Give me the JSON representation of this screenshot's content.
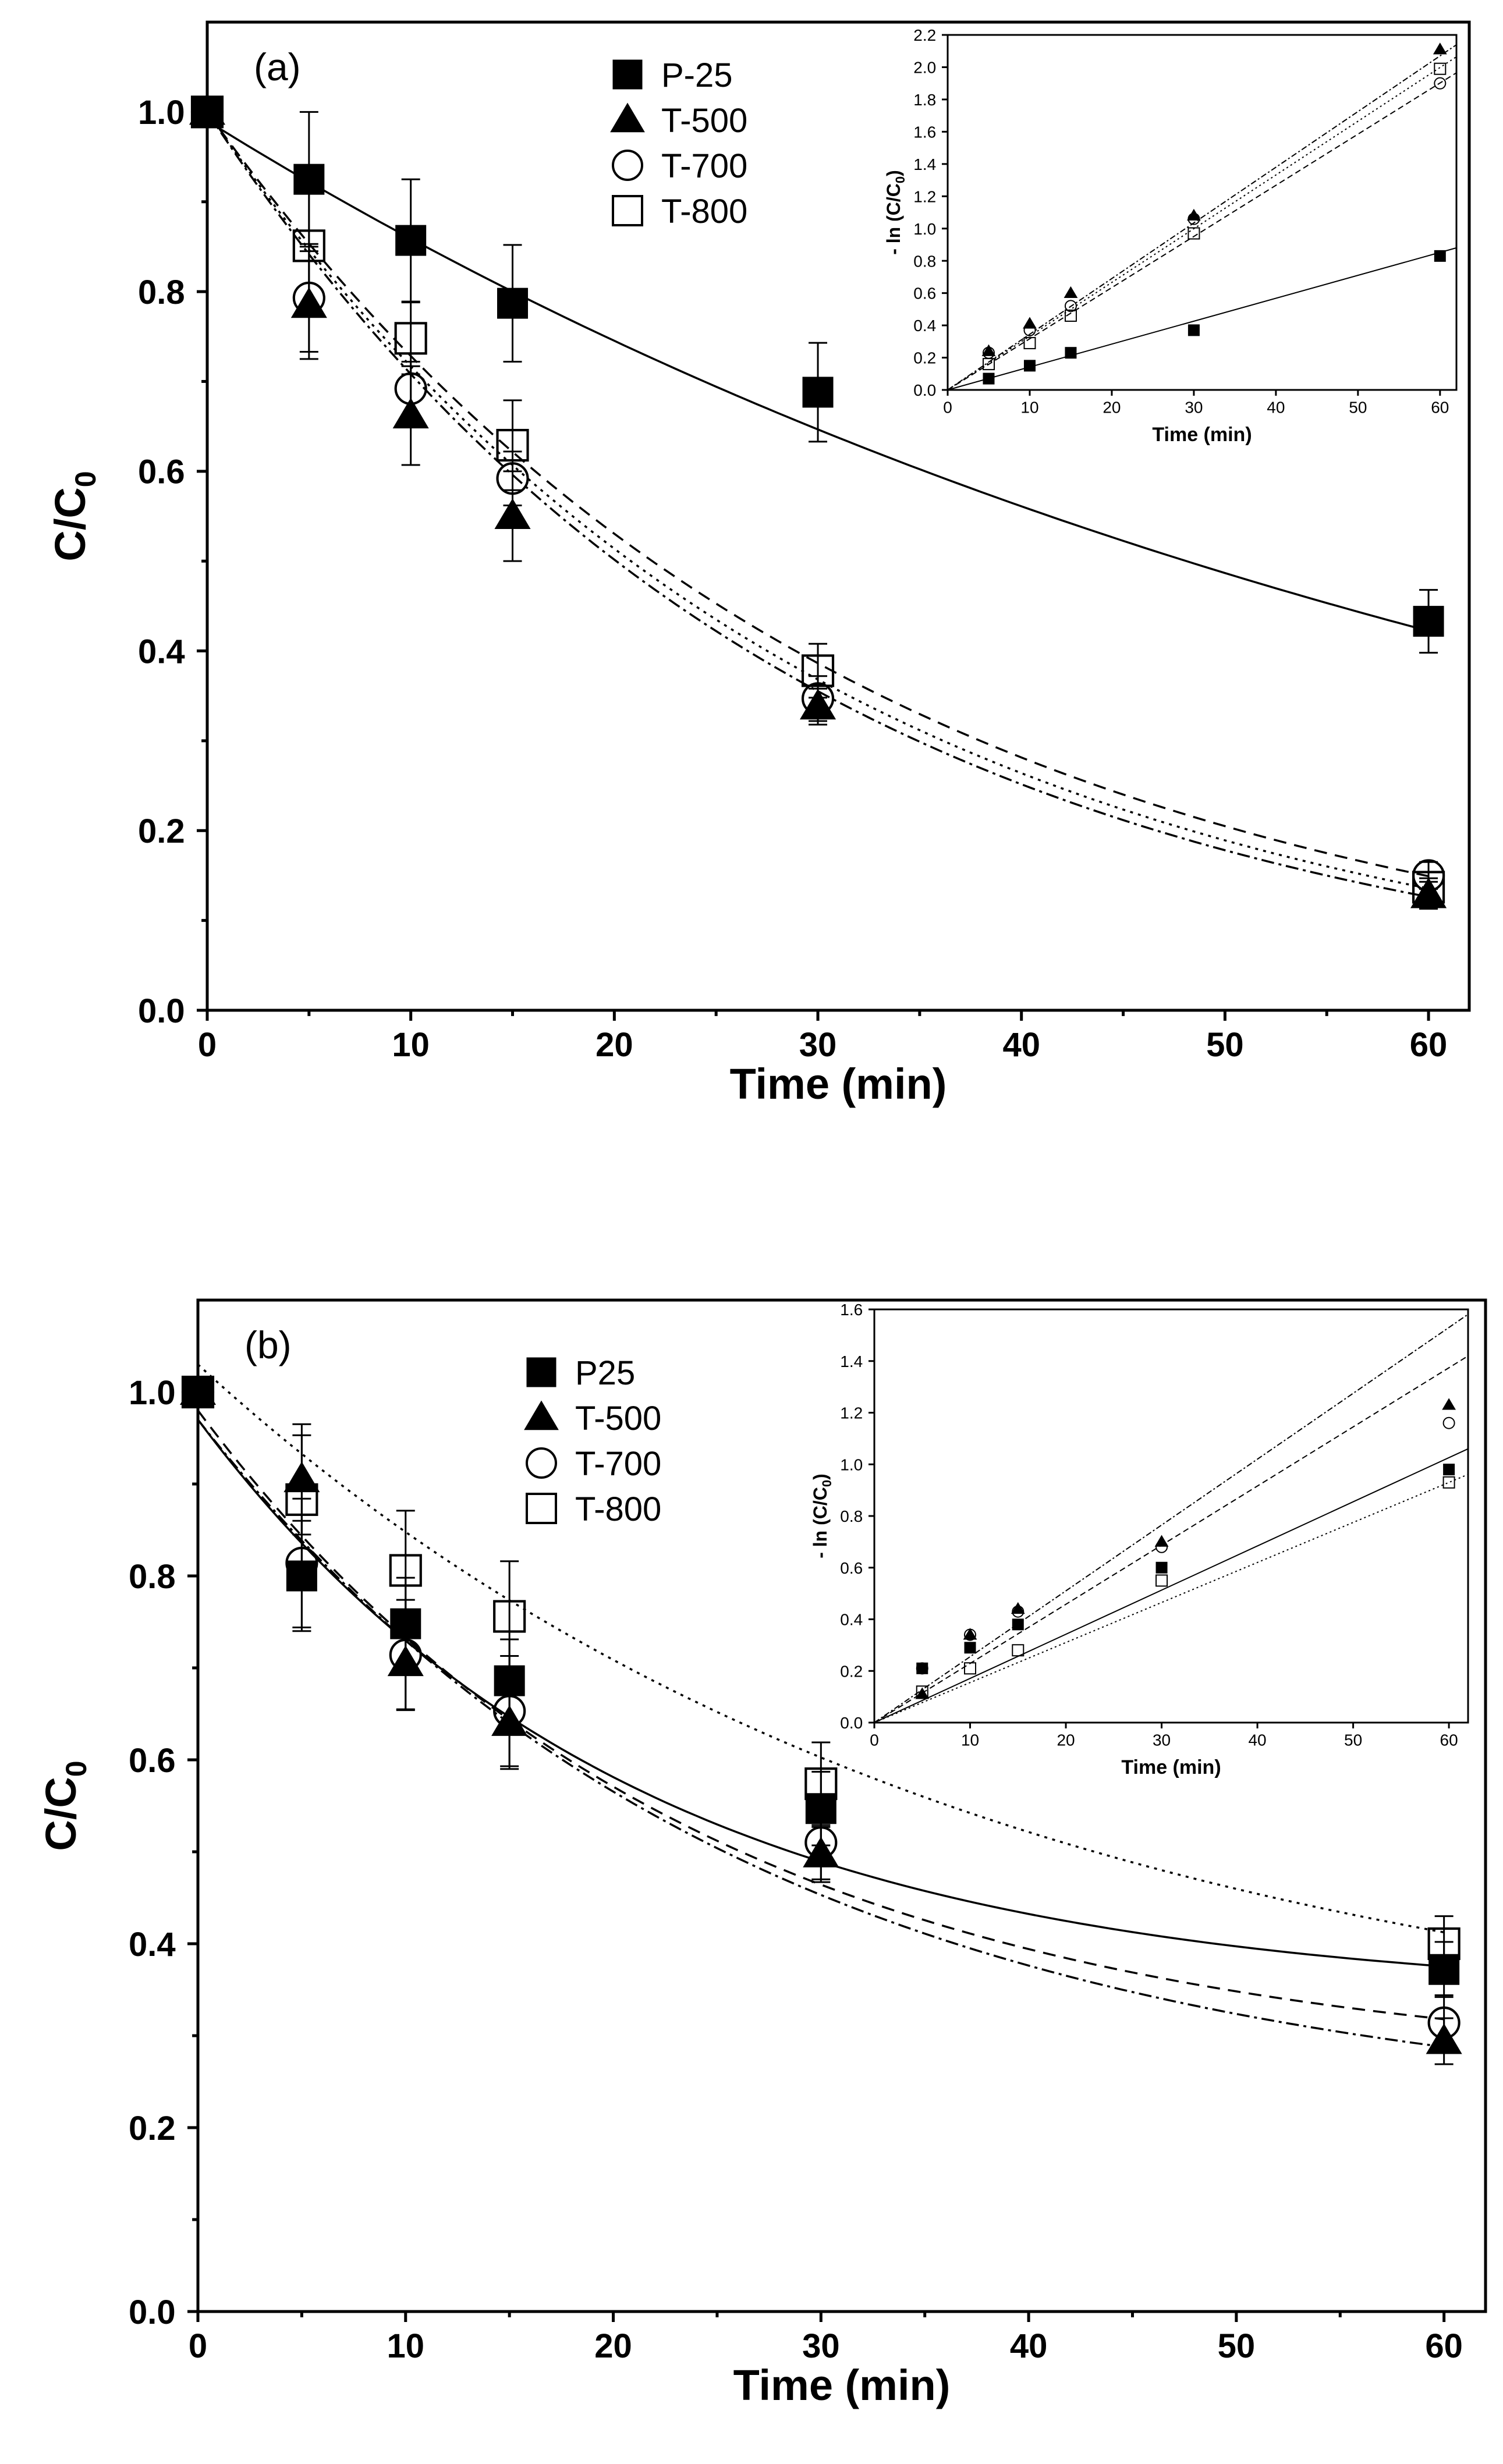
{
  "chart_data": [
    {
      "type": "scatter",
      "panel_label": "(a)",
      "xlabel": "Time (min)",
      "ylabel": "C/C",
      "ylabel_sub": "0",
      "xlim": [
        0,
        62
      ],
      "ylim": [
        0,
        1.1
      ],
      "xticks": [
        0,
        10,
        20,
        30,
        40,
        50,
        60
      ],
      "yticks": [
        0.0,
        0.2,
        0.4,
        0.6,
        0.8,
        1.0
      ],
      "xtick_labels": [
        "0",
        "10",
        "20",
        "30",
        "40",
        "50",
        "60"
      ],
      "ytick_labels": [
        "0.0",
        "0.2",
        "0.4",
        "0.6",
        "0.8",
        "1.0"
      ],
      "legend": [
        "P-25",
        "T-500",
        "T-700",
        "T-800"
      ],
      "legend_position": "top-center",
      "x": [
        0,
        5,
        10,
        15,
        30,
        60
      ],
      "series": [
        {
          "name": "P-25",
          "marker": "filled-square",
          "values": [
            1.0,
            0.925,
            0.857,
            0.787,
            0.688,
            0.433
          ],
          "errors": [
            0,
            0.075,
            0.068,
            0.065,
            0.055,
            0.035
          ],
          "fit": {
            "k": 0.0142,
            "y0": 0.99,
            "style": "solid"
          }
        },
        {
          "name": "T-500",
          "marker": "filled-triangle",
          "values": [
            1.0,
            0.785,
            0.662,
            0.55,
            0.338,
            0.128
          ],
          "errors": [
            0,
            0.06,
            0.055,
            0.05,
            0.02,
            0.015
          ],
          "fit": {
            "k": 0.0345,
            "y0": 1.0,
            "style": "dash-dot"
          }
        },
        {
          "name": "T-700",
          "marker": "open-circle",
          "values": [
            1.0,
            0.793,
            0.692,
            0.592,
            0.347,
            0.15
          ],
          "errors": [
            0,
            0.06,
            0.03,
            0.03,
            0.025,
            0.015
          ],
          "fit": {
            "k": 0.0317,
            "y0": 1.0,
            "style": "dashed"
          }
        },
        {
          "name": "T-800",
          "marker": "open-square",
          "values": [
            1.0,
            0.851,
            0.748,
            0.629,
            0.378,
            0.137
          ],
          "errors": [
            0,
            0.07,
            0.04,
            0.05,
            0.03,
            0.01
          ],
          "fit": {
            "k": 0.0333,
            "y0": 1.0,
            "style": "dotted"
          }
        }
      ],
      "inset": {
        "type": "scatter",
        "xlabel": "Time (min)",
        "ylabel": "- ln (C/C",
        "ylabel_sub": "0",
        "ylabel_close": ")",
        "xlim": [
          0,
          62
        ],
        "ylim": [
          0,
          2.2
        ],
        "xticks": [
          0,
          10,
          20,
          30,
          40,
          50,
          60
        ],
        "yticks": [
          0.0,
          0.2,
          0.4,
          0.6,
          0.8,
          1.0,
          1.2,
          1.4,
          1.6,
          1.8,
          2.0,
          2.2
        ],
        "xtick_labels": [
          "0",
          "10",
          "20",
          "30",
          "40",
          "50",
          "60"
        ],
        "ytick_labels": [
          "0.0",
          "0.2",
          "0.4",
          "0.6",
          "0.8",
          "1.0",
          "1.2",
          "1.4",
          "1.6",
          "1.8",
          "2.0",
          "2.2"
        ],
        "x": [
          5,
          10,
          15,
          30,
          60
        ],
        "series": [
          {
            "name": "P-25",
            "marker": "filled-square",
            "values": [
              0.07,
              0.15,
              0.23,
              0.37,
              0.83
            ],
            "slope": 0.0142
          },
          {
            "name": "T-500",
            "marker": "filled-triangle",
            "values": [
              0.24,
              0.41,
              0.6,
              1.08,
              2.11
            ],
            "slope": 0.0345
          },
          {
            "name": "T-700",
            "marker": "open-circle",
            "values": [
              0.23,
              0.37,
              0.52,
              1.06,
              1.9
            ],
            "slope": 0.0317
          },
          {
            "name": "T-800",
            "marker": "open-square",
            "values": [
              0.16,
              0.29,
              0.46,
              0.97,
              1.99
            ],
            "slope": 0.0333
          }
        ]
      }
    },
    {
      "type": "scatter",
      "panel_label": "(b)",
      "xlabel": "Time (min)",
      "ylabel": "C/C",
      "ylabel_sub": "0",
      "xlim": [
        0,
        62
      ],
      "ylim": [
        0,
        1.1
      ],
      "xticks": [
        0,
        10,
        20,
        30,
        40,
        50,
        60
      ],
      "yticks": [
        0.0,
        0.2,
        0.4,
        0.6,
        0.8,
        1.0
      ],
      "xtick_labels": [
        "0",
        "10",
        "20",
        "30",
        "40",
        "50",
        "60"
      ],
      "ytick_labels": [
        "0.0",
        "0.2",
        "0.4",
        "0.6",
        "0.8",
        "1.0"
      ],
      "legend": [
        "P25",
        "T-500",
        "T-700",
        "T-800"
      ],
      "legend_position": "top-left",
      "x": [
        0,
        5,
        10,
        15,
        30,
        60
      ],
      "series": [
        {
          "name": "P25",
          "marker": "filled-square",
          "values": [
            1.0,
            0.8,
            0.748,
            0.686,
            0.547,
            0.372
          ],
          "errors": [
            0,
            0.06,
            0.05,
            0.045,
            0.04,
            0.03
          ],
          "fit": {
            "A": 0.63,
            "k": 0.048,
            "c": 0.34,
            "style": "solid"
          }
        },
        {
          "name": "T-500",
          "marker": "filled-triangle",
          "values": [
            1.0,
            0.905,
            0.705,
            0.64,
            0.497,
            0.294
          ],
          "errors": [
            0,
            0.06,
            0.05,
            0.05,
            0.03,
            0.025
          ],
          "fit": {
            "A": 0.76,
            "k": 0.038,
            "c": 0.21,
            "style": "dash-dot"
          }
        },
        {
          "name": "T-700",
          "marker": "open-circle",
          "values": [
            1.0,
            0.814,
            0.714,
            0.653,
            0.51,
            0.314
          ],
          "errors": [
            0,
            0.07,
            0.06,
            0.06,
            0.04,
            0.03
          ],
          "fit": {
            "A": 0.72,
            "k": 0.042,
            "c": 0.26,
            "style": "dashed"
          }
        },
        {
          "name": "T-800",
          "marker": "open-square",
          "values": [
            1.0,
            0.883,
            0.806,
            0.756,
            0.574,
            0.4
          ],
          "errors": [
            0,
            0.07,
            0.065,
            0.06,
            0.045,
            0.03
          ],
          "fit": {
            "A": 0.77,
            "k": 0.027,
            "c": 0.26,
            "style": "dotted"
          }
        }
      ],
      "inset": {
        "type": "scatter",
        "xlabel": "Time (min)",
        "ylabel": "- ln (C/C",
        "ylabel_sub": "0",
        "ylabel_close": ")",
        "xlim": [
          0,
          62
        ],
        "ylim": [
          0,
          1.6
        ],
        "xticks": [
          0,
          10,
          20,
          30,
          40,
          50,
          60
        ],
        "yticks": [
          0.0,
          0.2,
          0.4,
          0.6,
          0.8,
          1.0,
          1.2,
          1.4,
          1.6
        ],
        "xtick_labels": [
          "0",
          "10",
          "20",
          "30",
          "40",
          "50",
          "60"
        ],
        "ytick_labels": [
          "0.0",
          "0.2",
          "0.4",
          "0.6",
          "0.8",
          "1.0",
          "1.2",
          "1.4",
          "1.6"
        ],
        "x": [
          5,
          10,
          15,
          30,
          60
        ],
        "series": [
          {
            "name": "P25",
            "marker": "filled-square",
            "values": [
              0.21,
              0.29,
              0.38,
              0.6,
              0.98
            ],
            "slope": 0.0171
          },
          {
            "name": "T-500",
            "marker": "filled-triangle",
            "values": [
              0.11,
              0.34,
              0.44,
              0.7,
              1.23
            ],
            "slope": 0.0255
          },
          {
            "name": "T-700",
            "marker": "open-circle",
            "values": [
              0.21,
              0.34,
              0.43,
              0.68,
              1.16
            ],
            "slope": 0.0229
          },
          {
            "name": "T-800",
            "marker": "open-square",
            "values": [
              0.12,
              0.21,
              0.28,
              0.55,
              0.93
            ],
            "slope": 0.0155
          }
        ]
      }
    }
  ]
}
